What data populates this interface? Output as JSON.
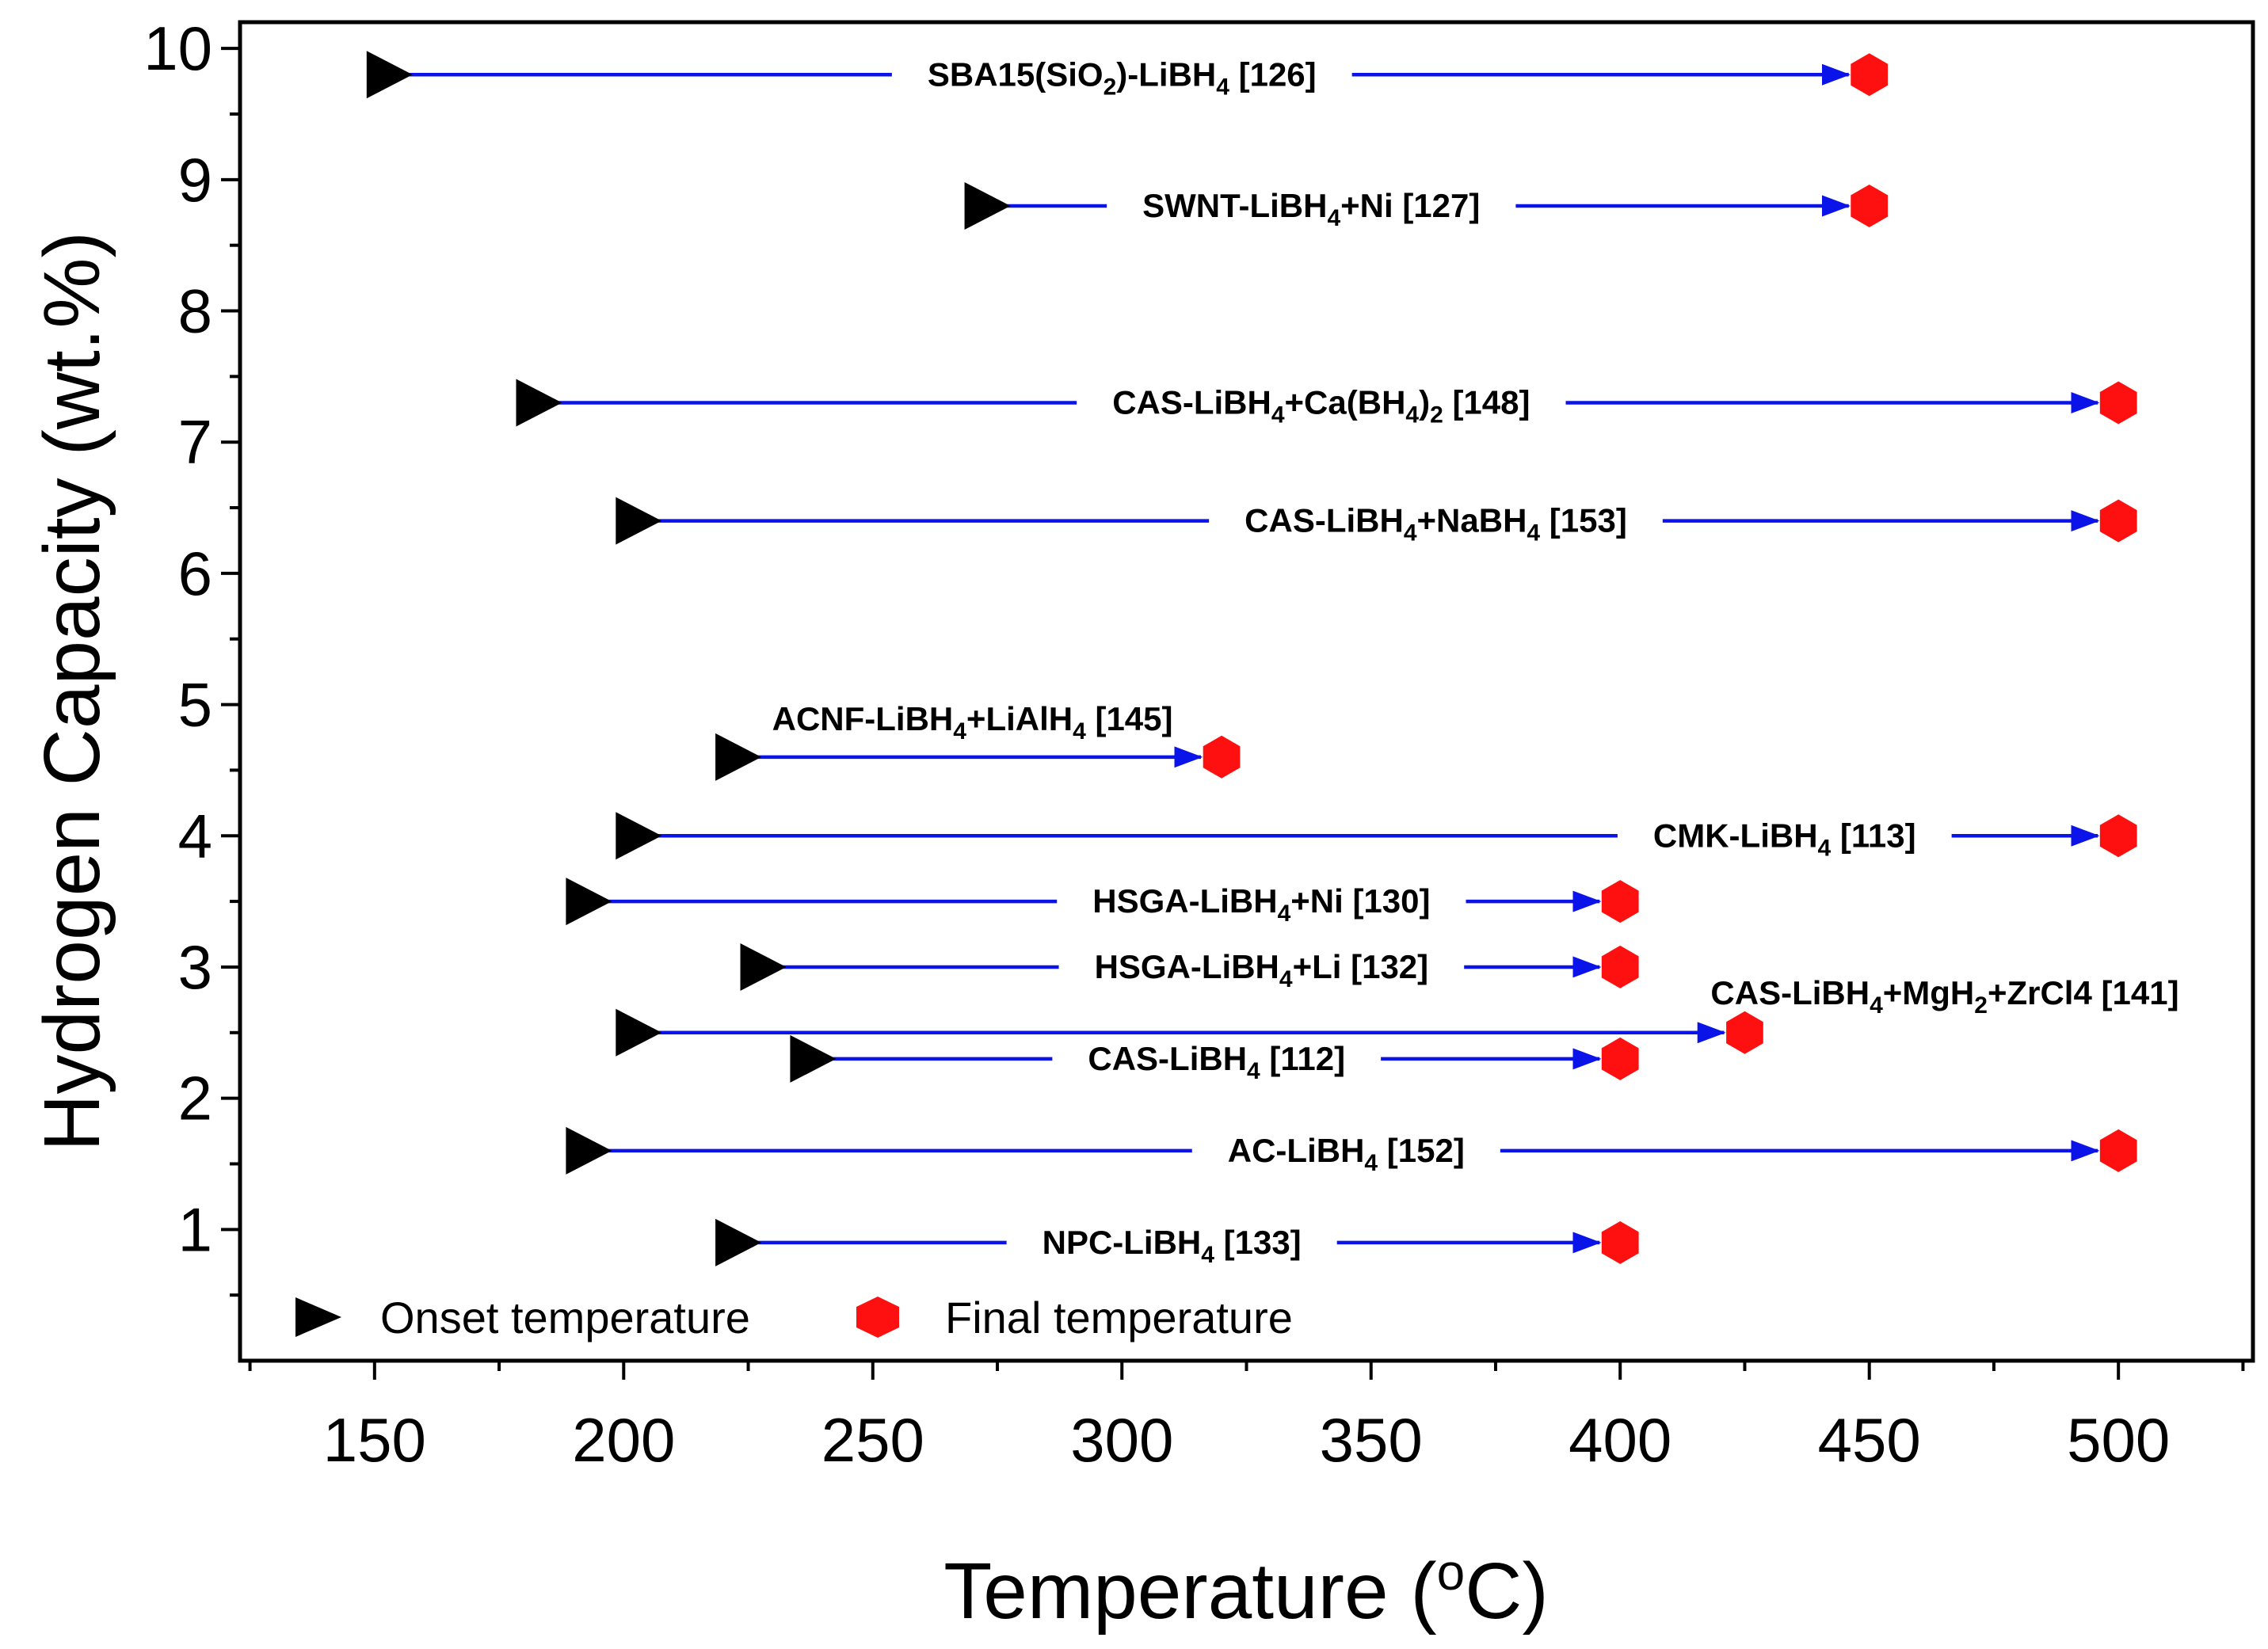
{
  "chart_data": {
    "type": "range-arrows",
    "title": "",
    "xlabel": "Temperature (oC)",
    "ylabel": "Hydrogen Capacity (wt.%)",
    "xlim": [
      123,
      527
    ],
    "ylim": [
      0,
      10.2
    ],
    "x_ticks": [
      150,
      200,
      250,
      300,
      350,
      400,
      450,
      500
    ],
    "y_ticks": [
      1,
      2,
      3,
      4,
      5,
      6,
      7,
      8,
      9,
      10
    ],
    "grid": false,
    "legend": {
      "position": "bottom-left",
      "onset": "Onset temperature",
      "final": "Final temperature"
    },
    "colors": {
      "arrow": "#0b14e8",
      "onset_marker": "#000000",
      "final_marker": "#ff1010"
    },
    "series": [
      {
        "label": "SBA15(SiO2)-LiBH4 [126]",
        "onset": 150,
        "final": 450,
        "capacity": 9.8
      },
      {
        "label": "SWNT-LiBH4+Ni [127]",
        "onset": 270,
        "final": 450,
        "capacity": 8.8
      },
      {
        "label": "CAS-LiBH4+Ca(BH4)2 [148]",
        "onset": 180,
        "final": 500,
        "capacity": 7.3
      },
      {
        "label": "CAS-LiBH4+NaBH4 [153]",
        "onset": 200,
        "final": 500,
        "capacity": 6.4
      },
      {
        "label": "ACNF-LiBH4+LiAlH4 [145]",
        "onset": 220,
        "final": 320,
        "capacity": 4.6
      },
      {
        "label": "CMK-LiBH4 [113]",
        "onset": 200,
        "final": 500,
        "capacity": 4.0
      },
      {
        "label": "HSGA-LiBH4+Ni [130]",
        "onset": 190,
        "final": 400,
        "capacity": 3.5
      },
      {
        "label": "HSGA-LiBH4+Li [132]",
        "onset": 225,
        "final": 400,
        "capacity": 3.0
      },
      {
        "label": "CAS-LiBH4+MgH2+ZrCl4 [141]",
        "onset": 200,
        "final": 425,
        "capacity": 2.5
      },
      {
        "label": "CAS-LiBH4 [112]",
        "onset": 235,
        "final": 400,
        "capacity": 2.3
      },
      {
        "label": "AC-LiBH4 [152]",
        "onset": 190,
        "final": 500,
        "capacity": 1.6
      },
      {
        "label": "NPC-LiBH4 [133]",
        "onset": 220,
        "final": 400,
        "capacity": 0.9
      }
    ]
  }
}
